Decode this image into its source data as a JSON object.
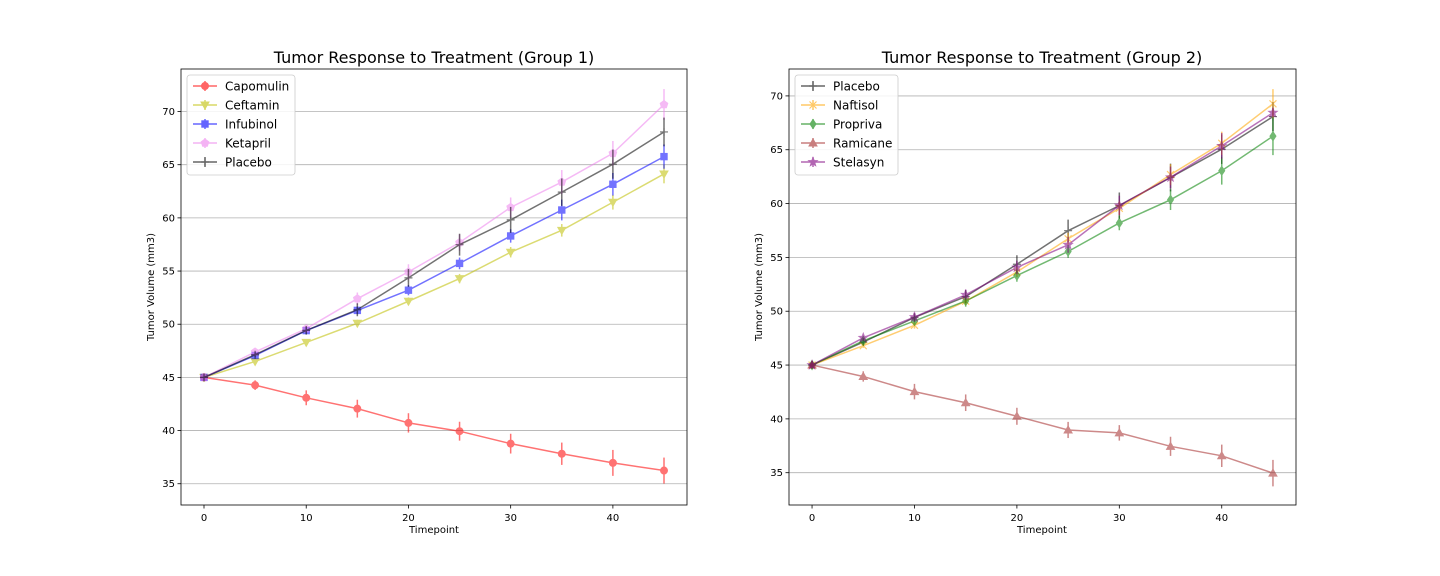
{
  "chart_data": [
    {
      "type": "line",
      "title": "Tumor Response to Treatment (Group 1)",
      "xlabel": "Timepoint",
      "ylabel": "Tumor Volume (mm3)",
      "xlim": [
        -2.25,
        47.25
      ],
      "ylim": [
        33.0,
        74.0
      ],
      "xticks": [
        0,
        10,
        20,
        30,
        40
      ],
      "yticks": [
        35,
        40,
        45,
        50,
        55,
        60,
        65,
        70
      ],
      "grid": "y-major",
      "legend_position": "top-left",
      "x": [
        0,
        5,
        10,
        15,
        20,
        25,
        30,
        35,
        40,
        45
      ],
      "series": [
        {
          "name": "Capomulin",
          "color": "#ff0000",
          "marker": "circle",
          "values": [
            45.0,
            44.27,
            43.08,
            42.06,
            40.72,
            39.94,
            38.77,
            37.82,
            36.96,
            36.24
          ],
          "errors": [
            0,
            0.45,
            0.7,
            0.84,
            0.91,
            0.89,
            0.93,
            1.05,
            1.22,
            1.22
          ]
        },
        {
          "name": "Ceftamin",
          "color": "#bfbf00",
          "marker": "triangle-down",
          "values": [
            45.0,
            46.5,
            48.29,
            50.09,
            52.16,
            54.29,
            56.77,
            58.83,
            61.47,
            64.13
          ],
          "errors": [
            0,
            0.16,
            0.24,
            0.33,
            0.36,
            0.44,
            0.49,
            0.59,
            0.69,
            0.88
          ]
        },
        {
          "name": "Infubinol",
          "color": "#0000ff",
          "marker": "square",
          "values": [
            45.0,
            47.06,
            49.4,
            51.3,
            53.2,
            55.72,
            58.3,
            60.74,
            63.16,
            65.76
          ],
          "errors": [
            0,
            0.24,
            0.28,
            0.36,
            0.48,
            0.55,
            0.63,
            0.98,
            1.06,
            1.14
          ]
        },
        {
          "name": "Ketapril",
          "color": "#ee82ee",
          "marker": "pentagon",
          "values": [
            45.0,
            47.39,
            49.58,
            52.4,
            54.92,
            57.68,
            60.99,
            63.37,
            66.07,
            70.66
          ],
          "errors": [
            0,
            0.26,
            0.36,
            0.58,
            0.72,
            0.77,
            0.93,
            1.13,
            1.16,
            1.45
          ]
        },
        {
          "name": "Placebo",
          "color": "#000000",
          "marker": "plus",
          "values": [
            45.0,
            47.13,
            49.42,
            51.36,
            54.36,
            57.48,
            59.81,
            62.42,
            65.05,
            68.08
          ],
          "errors": [
            0,
            0.22,
            0.4,
            0.61,
            0.84,
            1.03,
            1.22,
            1.29,
            1.37,
            1.35
          ]
        }
      ]
    },
    {
      "type": "line",
      "title": "Tumor Response to Treatment (Group 2)",
      "xlabel": "Timepoint",
      "ylabel": "Tumor Volume (mm3)",
      "xlim": [
        -2.25,
        47.25
      ],
      "ylim": [
        32.0,
        72.5
      ],
      "xticks": [
        0,
        10,
        20,
        30,
        40
      ],
      "yticks": [
        35,
        40,
        45,
        50,
        55,
        60,
        65,
        70
      ],
      "grid": "y-major",
      "legend_position": "top-left",
      "x": [
        0,
        5,
        10,
        15,
        20,
        25,
        30,
        35,
        40,
        45
      ],
      "series": [
        {
          "name": "Placebo",
          "color": "#000000",
          "marker": "plus",
          "values": [
            45.0,
            47.13,
            49.42,
            51.36,
            54.36,
            57.48,
            59.81,
            62.42,
            65.05,
            68.08
          ],
          "errors": [
            0,
            0.22,
            0.4,
            0.61,
            0.84,
            1.03,
            1.22,
            1.29,
            1.37,
            1.35
          ]
        },
        {
          "name": "Naftisol",
          "color": "#ffa500",
          "marker": "x",
          "values": [
            45.0,
            46.8,
            48.69,
            50.93,
            53.64,
            56.73,
            59.56,
            62.69,
            65.6,
            69.27
          ],
          "errors": [
            0,
            0.2,
            0.31,
            0.39,
            0.47,
            0.56,
            0.63,
            0.98,
            1.08,
            1.36
          ]
        },
        {
          "name": "Propriva",
          "color": "#008000",
          "marker": "diamond",
          "values": [
            45.0,
            47.25,
            49.1,
            50.95,
            53.31,
            55.55,
            58.2,
            60.35,
            63.05,
            66.26
          ],
          "errors": [
            0,
            0.23,
            0.37,
            0.53,
            0.57,
            0.6,
            0.68,
            0.95,
            1.29,
            1.76
          ]
        },
        {
          "name": "Ramicane",
          "color": "#a52a2a",
          "marker": "triangle-up",
          "values": [
            45.0,
            43.94,
            42.53,
            41.5,
            40.24,
            38.97,
            38.7,
            37.45,
            36.57,
            34.96
          ],
          "errors": [
            0,
            0.48,
            0.72,
            0.77,
            0.79,
            0.75,
            0.72,
            0.89,
            1.04,
            1.23
          ]
        },
        {
          "name": "Stelasyn",
          "color": "#800080",
          "marker": "star",
          "values": [
            45.0,
            47.53,
            49.46,
            51.53,
            54.07,
            56.17,
            59.83,
            62.44,
            65.36,
            68.44
          ],
          "errors": [
            0,
            0.24,
            0.43,
            0.49,
            0.62,
            0.74,
            0.9,
            1.0,
            1.2,
            0.43
          ]
        }
      ]
    }
  ]
}
